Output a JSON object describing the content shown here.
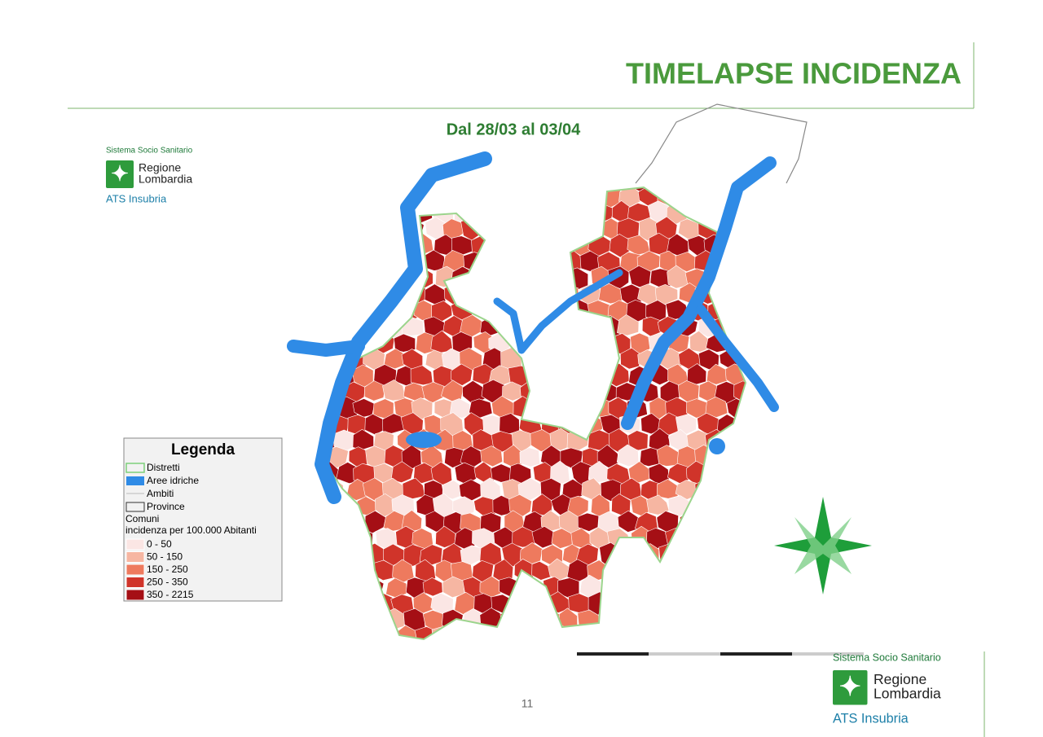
{
  "header": {
    "title": "TIMELAPSE INCIDENZA"
  },
  "map": {
    "subtitle": "Dal 28/03 al 03/04",
    "legend": {
      "title": "Legenda",
      "layers": [
        "Distretti",
        "Aree idriche",
        "Ambiti",
        "Province"
      ],
      "classes_title": "Comuni",
      "classes_subtitle": "incidenza per 100.000 Abitanti",
      "classes": [
        {
          "label": "0 - 50",
          "color": "#fbe6e4"
        },
        {
          "label": "50 - 150",
          "color": "#f6b6a2"
        },
        {
          "label": "150 - 250",
          "color": "#ee7a5e"
        },
        {
          "label": "250 - 350",
          "color": "#d0342a"
        },
        {
          "label": "350 - 2215",
          "color": "#a50f15"
        }
      ]
    }
  },
  "logos": [
    {
      "system": "Sistema Socio Sanitario",
      "line1": "Regione",
      "line2": "Lombardia",
      "org": "ATS Insubria"
    },
    {
      "system": "Sistema Socio Sanitario",
      "line1": "Regione",
      "line2": "Lombardia",
      "org": "ATS Insubria"
    }
  ],
  "footer": {
    "page": "11"
  }
}
